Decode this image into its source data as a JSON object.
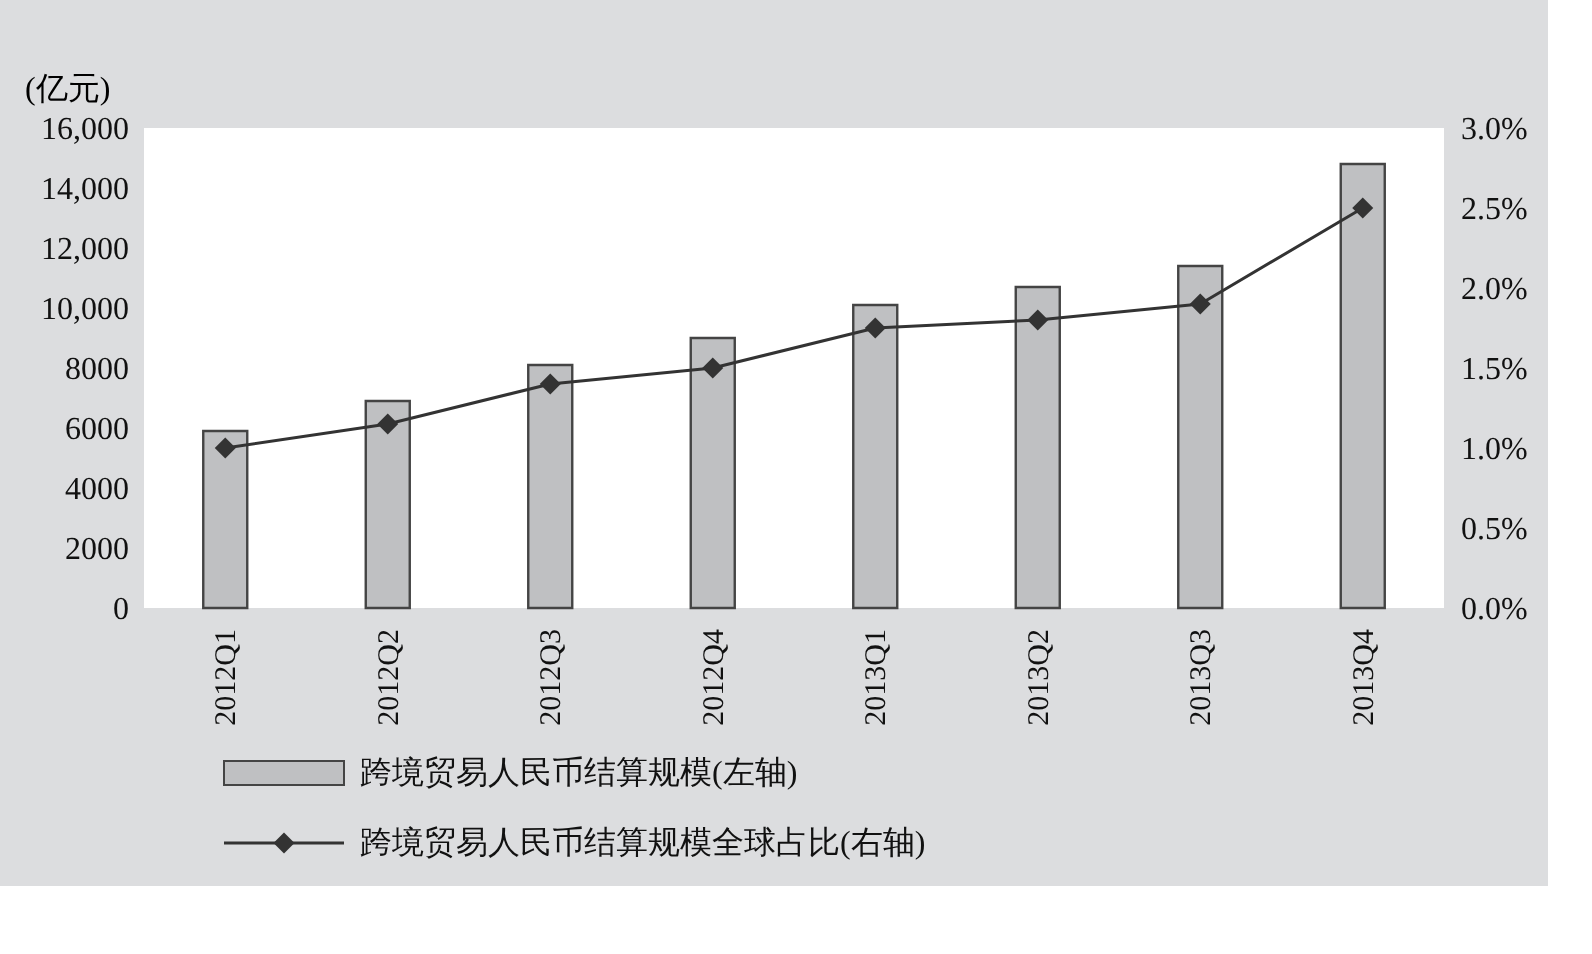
{
  "chart_data": {
    "type": "bar",
    "categories": [
      "2012Q1",
      "2012Q2",
      "2012Q3",
      "2012Q4",
      "2013Q1",
      "2013Q2",
      "2013Q3",
      "2013Q4"
    ],
    "ylabel": "(亿元)",
    "series": [
      {
        "name": "跨境贸易人民币结算规模(左轴)",
        "color": "#bfc0c2",
        "values": [
          5900,
          6900,
          8100,
          9000,
          10100,
          10700,
          11400,
          14800
        ]
      },
      {
        "name": "跨境贸易人民币结算规模全球占比(右轴)",
        "type": "line",
        "axis": "y2",
        "color": "#333333",
        "marker": "diamond",
        "line_style": "solid",
        "values": [
          1.0,
          1.15,
          1.4,
          1.5,
          1.75,
          1.8,
          1.9,
          2.5
        ]
      }
    ],
    "ylim": [
      0,
      16000
    ],
    "yticks": [
      0,
      2000,
      4000,
      6000,
      8000,
      {
        "value": 10000,
        "label": "10,000"
      },
      {
        "value": 12000,
        "label": "12,000"
      },
      {
        "value": 14000,
        "label": "14,000"
      },
      {
        "value": 16000,
        "label": "16,000"
      }
    ],
    "y2lim": [
      0,
      3
    ],
    "y2ticks": [
      {
        "value": 0,
        "label": "0.0%"
      },
      {
        "value": 0.5,
        "label": "0.5%"
      },
      {
        "value": 1,
        "label": "1.0%"
      },
      {
        "value": 1.5,
        "label": "1.5%"
      },
      {
        "value": 2,
        "label": "2.0%"
      },
      {
        "value": 2.5,
        "label": "2.5%"
      },
      {
        "value": 3,
        "label": "3.0%"
      }
    ],
    "grid": false,
    "legend": "bottom"
  }
}
